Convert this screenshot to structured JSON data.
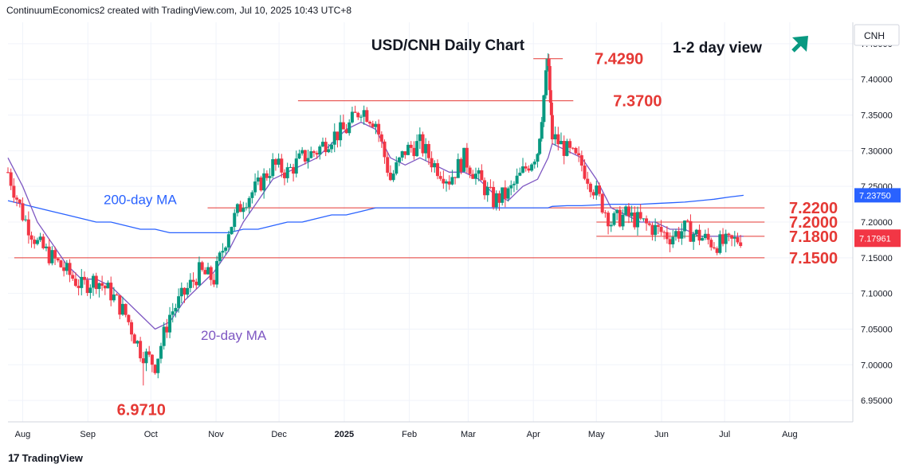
{
  "header": {
    "attribution": "ContinuumEconomics2 created with TradingView.com, Jul 10, 2025 10:43 UTC+8"
  },
  "footer": {
    "logo_text": "TradingView",
    "logo_glyph": "17"
  },
  "colors": {
    "up": "#089981",
    "down": "#f23645",
    "ma200": "#2962ff",
    "ma20": "#7e57c2",
    "level": "#e53935",
    "label_red": "#e53935",
    "arrow": "#089981",
    "grid": "#f0f3fa",
    "axis_text": "#131722"
  },
  "chart_data": {
    "type": "candlestick",
    "title": "USD/CNH Daily Chart",
    "subtitle": "1-2 day view",
    "view_icon": "arrow-up-right-icon",
    "symbol": "CNH",
    "ylim": [
      6.92,
      7.48
    ],
    "x_range": [
      "2024-07-25",
      "2025-08-31"
    ],
    "y_ticks": [
      "7.45000",
      "7.40000",
      "7.35000",
      "7.30000",
      "7.25000",
      "7.20000",
      "7.15000",
      "7.10000",
      "7.05000",
      "7.00000",
      "6.95000"
    ],
    "x_ticks": [
      {
        "label": "Aug",
        "date": "2024-08-01"
      },
      {
        "label": "Sep",
        "date": "2024-09-01"
      },
      {
        "label": "Oct",
        "date": "2024-10-01"
      },
      {
        "label": "Nov",
        "date": "2024-11-01"
      },
      {
        "label": "Dec",
        "date": "2024-12-01"
      },
      {
        "label": "2025",
        "date": "2025-01-01"
      },
      {
        "label": "Feb",
        "date": "2025-02-01"
      },
      {
        "label": "Mar",
        "date": "2025-03-01"
      },
      {
        "label": "Apr",
        "date": "2025-04-01"
      },
      {
        "label": "May",
        "date": "2025-05-01"
      },
      {
        "label": "Jun",
        "date": "2025-06-01"
      },
      {
        "label": "Jul",
        "date": "2025-07-01"
      },
      {
        "label": "Aug",
        "date": "2025-08-01"
      }
    ],
    "price_series": {
      "name": "USD/CNH",
      "dates": [
        "2024-07-25",
        "2024-08-01",
        "2024-08-08",
        "2024-08-15",
        "2024-08-22",
        "2024-08-29",
        "2024-09-05",
        "2024-09-12",
        "2024-09-19",
        "2024-09-26",
        "2024-10-03",
        "2024-10-10",
        "2024-10-17",
        "2024-10-24",
        "2024-10-31",
        "2024-11-07",
        "2024-11-14",
        "2024-11-21",
        "2024-11-28",
        "2024-12-05",
        "2024-12-12",
        "2024-12-19",
        "2024-12-26",
        "2025-01-02",
        "2025-01-09",
        "2025-01-16",
        "2025-01-23",
        "2025-01-30",
        "2025-02-06",
        "2025-02-13",
        "2025-02-20",
        "2025-02-27",
        "2025-03-06",
        "2025-03-13",
        "2025-03-20",
        "2025-03-27",
        "2025-04-03",
        "2025-04-08",
        "2025-04-10",
        "2025-04-17",
        "2025-04-24",
        "2025-05-01",
        "2025-05-08",
        "2025-05-15",
        "2025-05-22",
        "2025-05-29",
        "2025-06-05",
        "2025-06-12",
        "2025-06-19",
        "2025-06-26",
        "2025-07-03",
        "2025-07-10"
      ],
      "close": [
        7.27,
        7.21,
        7.17,
        7.15,
        7.13,
        7.11,
        7.12,
        7.1,
        7.07,
        7.02,
        7.0,
        7.07,
        7.1,
        7.13,
        7.12,
        7.19,
        7.23,
        7.25,
        7.28,
        7.27,
        7.29,
        7.3,
        7.32,
        7.33,
        7.36,
        7.34,
        7.26,
        7.3,
        7.31,
        7.28,
        7.26,
        7.29,
        7.26,
        7.23,
        7.24,
        7.27,
        7.3,
        7.429,
        7.32,
        7.3,
        7.28,
        7.24,
        7.2,
        7.21,
        7.2,
        7.19,
        7.18,
        7.19,
        7.18,
        7.17,
        7.17,
        7.1796
      ]
    },
    "ma20": {
      "name": "20-day MA",
      "values": [
        7.29,
        7.25,
        7.2,
        7.17,
        7.14,
        7.12,
        7.12,
        7.11,
        7.09,
        7.07,
        7.05,
        7.06,
        7.09,
        7.11,
        7.13,
        7.16,
        7.2,
        7.23,
        7.26,
        7.27,
        7.28,
        7.29,
        7.31,
        7.33,
        7.34,
        7.33,
        7.29,
        7.28,
        7.29,
        7.28,
        7.27,
        7.27,
        7.26,
        7.24,
        7.23,
        7.25,
        7.26,
        7.29,
        7.31,
        7.3,
        7.29,
        7.26,
        7.22,
        7.21,
        7.2,
        7.2,
        7.19,
        7.19,
        7.18,
        7.18,
        7.18,
        7.18
      ]
    },
    "ma200": {
      "name": "200-day MA",
      "values": [
        7.23,
        7.225,
        7.22,
        7.215,
        7.21,
        7.205,
        7.2,
        7.2,
        7.195,
        7.19,
        7.19,
        7.185,
        7.185,
        7.185,
        7.185,
        7.185,
        7.19,
        7.19,
        7.195,
        7.2,
        7.2,
        7.205,
        7.21,
        7.21,
        7.215,
        7.22,
        7.22,
        7.22,
        7.22,
        7.22,
        7.22,
        7.22,
        7.22,
        7.22,
        7.22,
        7.22,
        7.22,
        7.22,
        7.222,
        7.223,
        7.223,
        7.224,
        7.225,
        7.225,
        7.225,
        7.226,
        7.227,
        7.228,
        7.23,
        7.232,
        7.235,
        7.2375
      ]
    },
    "levels": [
      {
        "label": "7.4290",
        "value": 7.429,
        "from": "2025-04-01",
        "to": "2025-04-15"
      },
      {
        "label": "7.3700",
        "value": 7.37,
        "from": "2024-12-10",
        "to": "2025-04-20"
      },
      {
        "label": "7.2200",
        "value": 7.22,
        "from": "2024-10-28",
        "to": "2025-07-20"
      },
      {
        "label": "7.2000",
        "value": 7.2,
        "from": "2025-05-01",
        "to": "2025-07-20"
      },
      {
        "label": "7.1800",
        "value": 7.18,
        "from": "2025-05-01",
        "to": "2025-07-20"
      },
      {
        "label": "7.1500",
        "value": 7.15,
        "from": "2024-07-28",
        "to": "2025-07-20"
      }
    ],
    "annotations": [
      {
        "text": "6.9710",
        "value": 6.971,
        "date": "2024-09-30"
      },
      {
        "text": "200-day MA",
        "series": "ma200"
      },
      {
        "text": "20-day MA",
        "series": "ma20"
      }
    ],
    "last_values": {
      "ma200": "7.23750",
      "price": "7.17961",
      "price_bar_color": "#f23645",
      "ma200_bar_color": "#2962ff"
    },
    "grid": true,
    "legend": "none"
  }
}
